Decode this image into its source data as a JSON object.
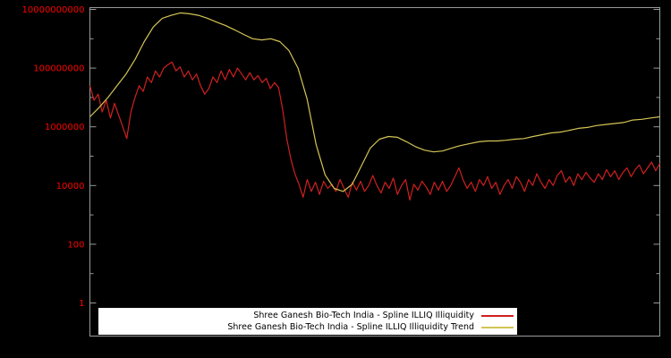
{
  "background_color": "#000000",
  "legend": {
    "background": "#ffffff",
    "text_color": "#000000",
    "items": [
      {
        "label": "Shree Ganesh Bio-Tech India - Spline ILLIQ Illiquidity"
      },
      {
        "label": "Shree Ganesh Bio-Tech India - Spline ILLIQ Illiquidity Trend"
      }
    ]
  },
  "chart_data": {
    "type": "line",
    "title": "",
    "xlabel": "",
    "ylabel": "",
    "y_scale": "log",
    "ylim": [
      1,
      10000000000
    ],
    "grid": false,
    "x_tick_labels": [],
    "y_ticks": [
      1,
      100,
      10000,
      1000000,
      100000000,
      10000000000
    ],
    "y_tick_labels": [
      "1",
      "100",
      "10000",
      "1000000",
      "100000000",
      "10000000000"
    ],
    "axis_label_color": "#ff0000",
    "border_color": "#9a9a9a",
    "legend_position": "bottom-center",
    "series": [
      {
        "name": "Shree Ganesh Bio-Tech India - Spline ILLIQ Illiquidity",
        "color": "#d02020",
        "values": [
          25000000.0,
          8000000.0,
          13000000.0,
          3200000.0,
          8000000.0,
          2000000.0,
          6300000.0,
          2500000.0,
          1000000.0,
          400000.0,
          3200000.0,
          10000000.0,
          25000000.0,
          16000000.0,
          50000000.0,
          32000000.0,
          80000000.0,
          50000000.0,
          100000000.0,
          130000000.0,
          160000000.0,
          80000000.0,
          110000000.0,
          50000000.0,
          80000000.0,
          40000000.0,
          63000000.0,
          25000000.0,
          13000000.0,
          20000000.0,
          50000000.0,
          32000000.0,
          80000000.0,
          40000000.0,
          90000000.0,
          50000000.0,
          100000000.0,
          63000000.0,
          40000000.0,
          70000000.0,
          40000000.0,
          56000000.0,
          32000000.0,
          45000000.0,
          20000000.0,
          32000000.0,
          22000000.0,
          4000000.0,
          400000.0,
          80000.0,
          25000.0,
          11000.0,
          4000.0,
          16000.0,
          6300.0,
          13000.0,
          5000.0,
          14000.0,
          8000.0,
          11000.0,
          6300.0,
          16000.0,
          8000.0,
          4000.0,
          13000.0,
          7000.0,
          14000.0,
          6300.0,
          10000.0,
          22000.0,
          10000.0,
          5600.0,
          13000.0,
          8000.0,
          18000.0,
          5000.0,
          10000.0,
          16000.0,
          3200.0,
          11000.0,
          7000.0,
          14000.0,
          9000.0,
          5000.0,
          13000.0,
          7000.0,
          14000.0,
          6300.0,
          10000.0,
          20000.0,
          40000.0,
          16000.0,
          8000.0,
          13000.0,
          6300.0,
          16000.0,
          10000.0,
          20000.0,
          8000.0,
          13000.0,
          5000.0,
          10000.0,
          16000.0,
          8000.0,
          20000.0,
          13000.0,
          6300.0,
          16000.0,
          10000.0,
          25000.0,
          13000.0,
          8000.0,
          16000.0,
          10000.0,
          22000.0,
          32000.0,
          13000.0,
          20000.0,
          10000.0,
          25000.0,
          16000.0,
          28000.0,
          18000.0,
          13000.0,
          25000.0,
          16000.0,
          35000.0,
          20000.0,
          32000.0,
          16000.0,
          28000.0,
          40000.0,
          20000.0,
          35000.0,
          50000.0,
          25000.0,
          40000.0,
          63000.0,
          32000.0,
          56000.0
        ]
      },
      {
        "name": "Shree Ganesh Bio-Tech India - Spline ILLIQ Illiquidity Trend",
        "color": "#d4c455",
        "values": [
          2200000.0,
          4500000.0,
          10000000.0,
          25000000.0,
          63000000.0,
          200000000.0,
          800000000.0,
          2500000000.0,
          5000000000.0,
          6300000000.0,
          7600000000.0,
          7100000000.0,
          6300000000.0,
          5000000000.0,
          3700000000.0,
          2800000000.0,
          2000000000.0,
          1400000000.0,
          1000000000.0,
          910000000.0,
          1000000000.0,
          800000000.0,
          400000000.0,
          100000000.0,
          9000000.0,
          250000.0,
          23000.0,
          8000.0,
          6300.0,
          11000.0,
          46000.0,
          190000.0,
          380000.0,
          470000.0,
          440000.0,
          310000.0,
          210000.0,
          160000.0,
          140000.0,
          150000.0,
          190000.0,
          230000.0,
          270000.0,
          310000.0,
          330000.0,
          330000.0,
          350000.0,
          380000.0,
          400000.0,
          470000.0,
          540000.0,
          620000.0,
          660000.0,
          760000.0,
          890000.0,
          950000.0,
          1100000.0,
          1200000.0,
          1300000.0,
          1400000.0,
          1700000.0,
          1800000.0,
          2000000.0,
          2200000.0
        ]
      }
    ]
  }
}
